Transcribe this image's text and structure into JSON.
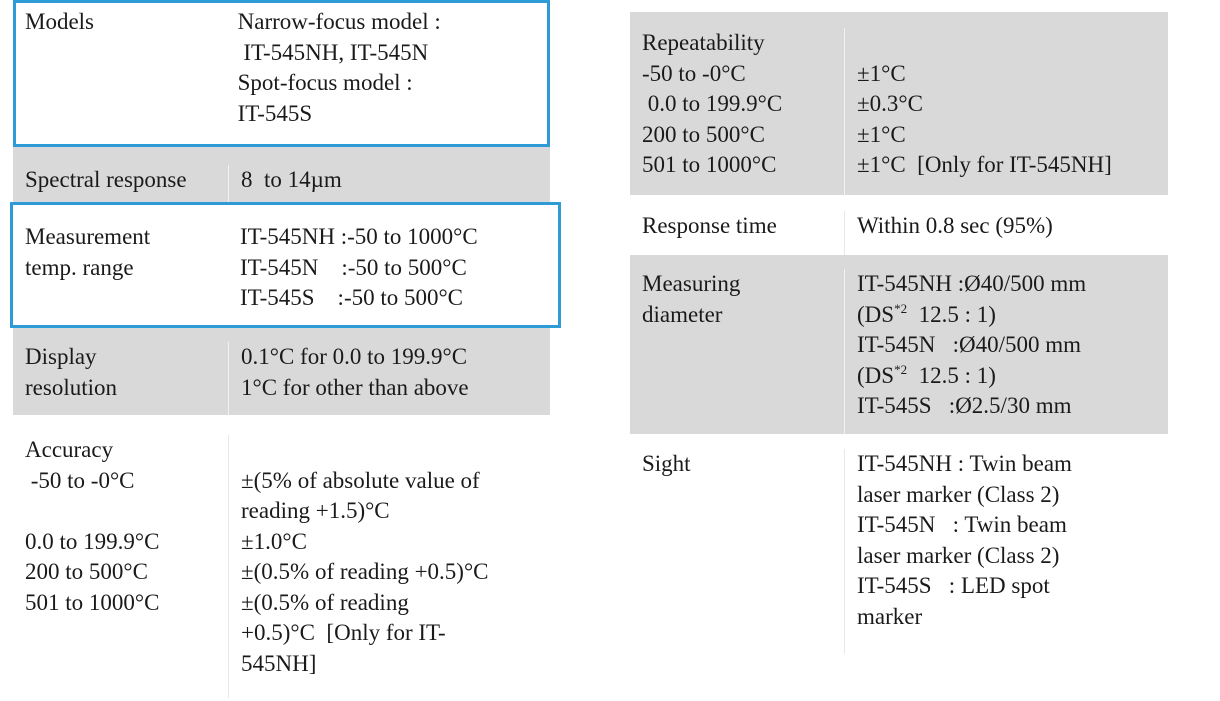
{
  "left": {
    "models": {
      "label": "Models",
      "values": [
        "Narrow-focus model :",
        " IT-545NH, IT-545N",
        "Spot-focus model :",
        "IT-545S"
      ]
    },
    "spectral": {
      "label": "Spectral response",
      "value": "8  to 14µm"
    },
    "measurement": {
      "labels": [
        "Measurement",
        "temp. range"
      ],
      "values": [
        "IT-545NH :-50 to 1000°C",
        "IT-545N    :-50 to 500°C",
        "IT-545S    :-50 to 500°C"
      ]
    },
    "display": {
      "labels": [
        "Display",
        "resolution"
      ],
      "values": [
        "0.1°C for 0.0 to 199.9°C",
        "1°C for other than above"
      ]
    },
    "accuracy": {
      "labels": [
        "Accuracy",
        " -50 to -0°C",
        "",
        "0.0 to 199.9°C",
        "200 to 500°C",
        "501 to 1000°C"
      ],
      "values": [
        "",
        "±(5% of absolute value of",
        "reading +1.5)°C",
        "±1.0°C",
        "±(0.5% of reading +0.5)°C",
        "±(0.5% of reading",
        "+0.5)°C  [Only for IT-",
        "545NH]"
      ]
    }
  },
  "right": {
    "repeatability": {
      "labels": [
        "Repeatability",
        "-50 to -0°C",
        " 0.0 to 199.9°C",
        "200 to 500°C",
        "501 to 1000°C"
      ],
      "values": [
        "",
        "±1°C",
        "±0.3°C",
        "±1°C",
        "±1°C  [Only for IT-545NH]"
      ]
    },
    "response": {
      "label": "Response time",
      "value": "Within 0.8 sec (95%)"
    },
    "diameter": {
      "labels": [
        "Measuring",
        "diameter"
      ],
      "l1": "IT-545NH :Ø40/500 mm",
      "l2a": "(DS",
      "sup": "*2",
      "l2b": "  12.5 : 1)",
      "l3": "IT-545N   :Ø40/500 mm",
      "l4a": "(DS",
      "l4b": "  12.5 : 1)",
      "l5": "IT-545S   :Ø2.5/30 mm"
    },
    "sight": {
      "label": "Sight",
      "values": [
        "IT-545NH : Twin beam",
        "laser marker (Class 2)",
        "IT-545N   : Twin beam",
        "laser marker (Class 2)",
        "IT-545S   : LED spot",
        "marker"
      ]
    }
  }
}
